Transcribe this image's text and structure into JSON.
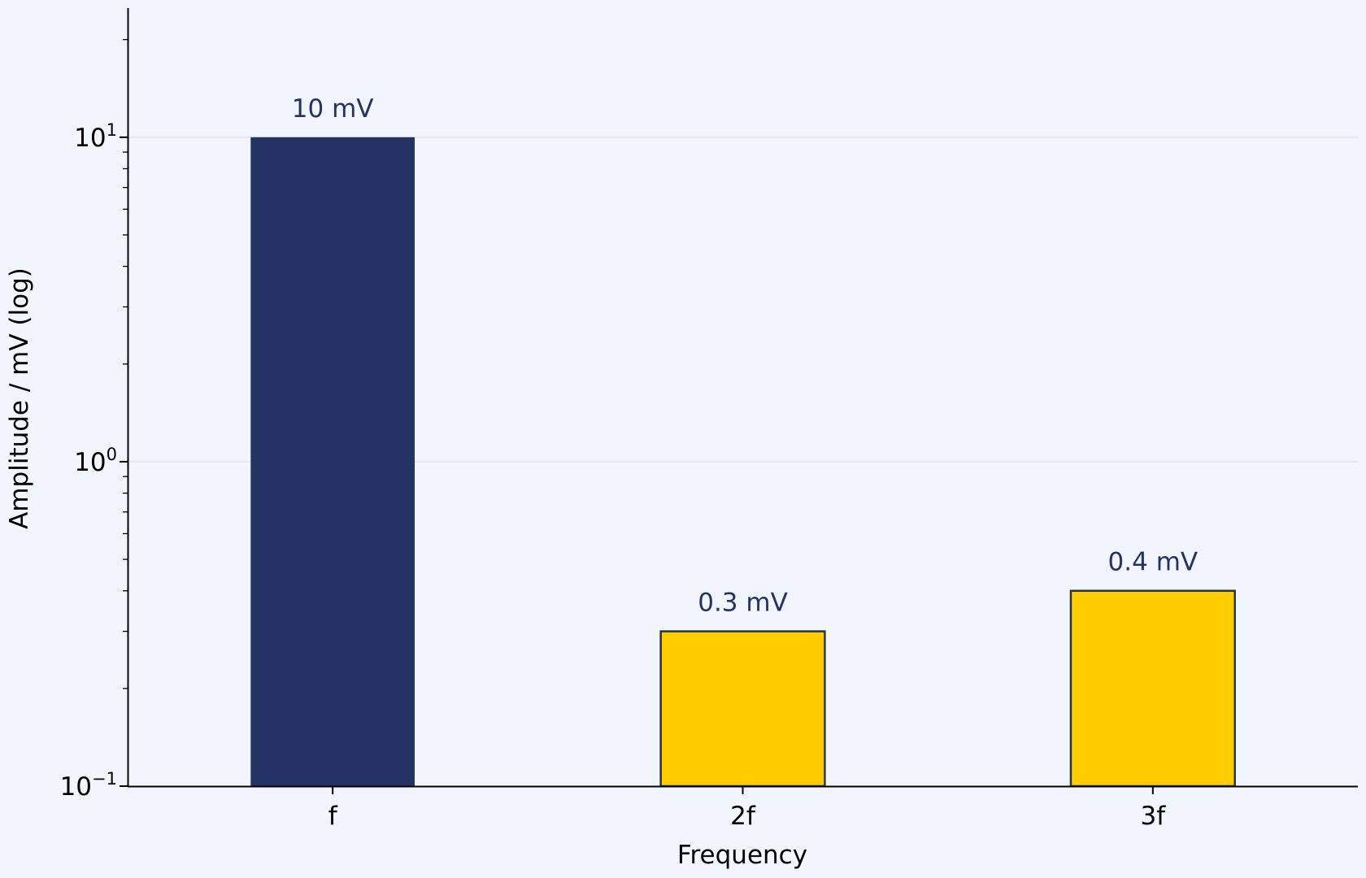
{
  "chart_data": {
    "type": "bar",
    "title": "",
    "xlabel": "Frequency",
    "ylabel": "Amplitude / mV (log)",
    "yscale": "log",
    "ylim": [
      0.1,
      25
    ],
    "yticks": [
      {
        "value": 0.1,
        "base": "10",
        "exp": "−1"
      },
      {
        "value": 1,
        "base": "10",
        "exp": "0"
      },
      {
        "value": 10,
        "base": "10",
        "exp": "1"
      }
    ],
    "categories": [
      "f",
      "2f",
      "3f"
    ],
    "values": [
      10,
      0.3,
      0.4
    ],
    "data_labels": [
      "10 mV",
      "0.3 mV",
      "0.4 mV"
    ],
    "colors": [
      "#243364",
      "#ffcd00",
      "#ffcd00"
    ],
    "edge_color": "#243346",
    "grid": "horizontal-major",
    "legend": "none"
  }
}
